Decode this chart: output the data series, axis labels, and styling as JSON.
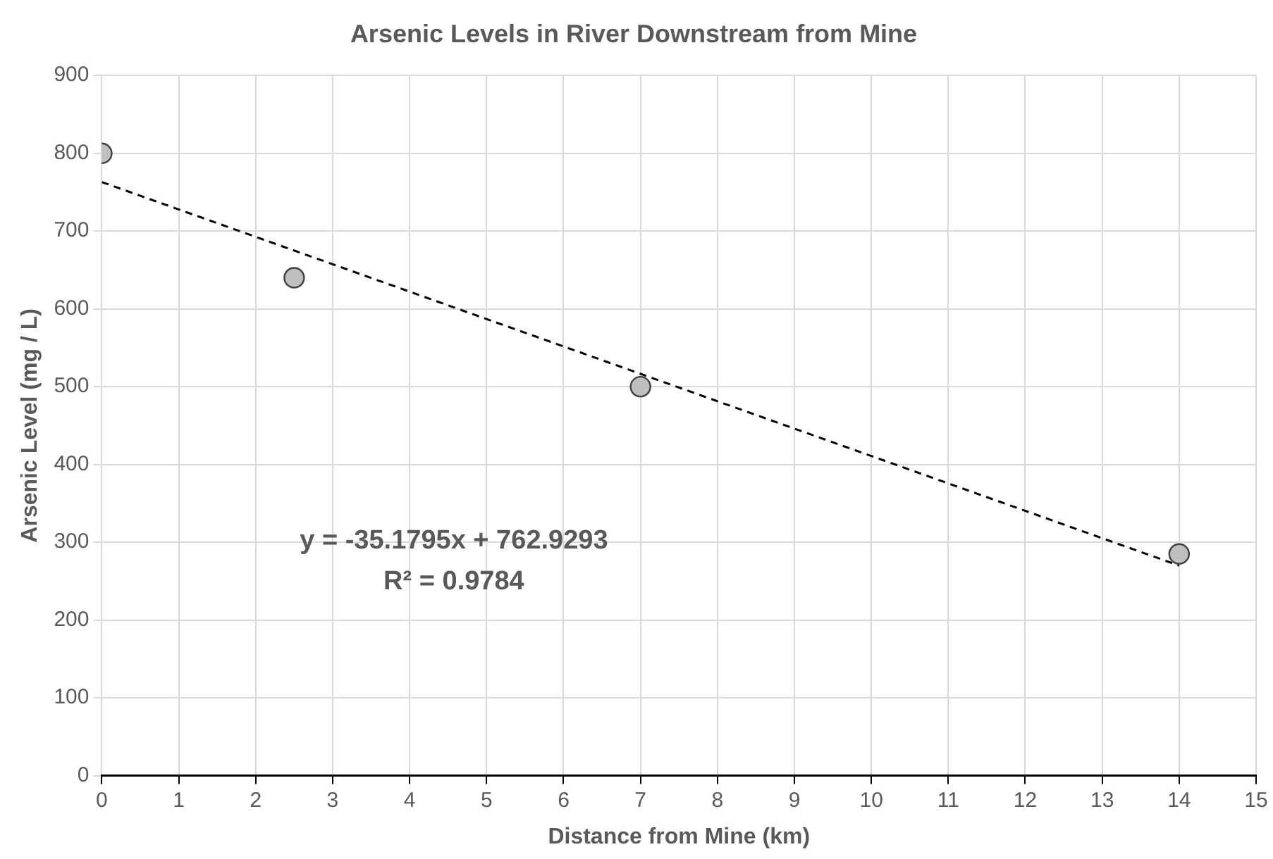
{
  "chart_data": {
    "type": "scatter",
    "title": "Arsenic Levels in River Downstream from Mine",
    "xlabel": "Distance from Mine (km)",
    "ylabel": "Arsenic Level (mg / L)",
    "x": [
      0,
      2.5,
      7,
      14
    ],
    "series": [
      {
        "type": "scatter",
        "color": "#bfbfbf",
        "values": [
          800,
          640,
          500,
          285
        ],
        "marker": "circle"
      },
      {
        "type": "line",
        "color": "#000000",
        "x": [
          0,
          14
        ],
        "values": [
          763,
          270
        ],
        "line_style": "dashed",
        "marker": "none"
      }
    ],
    "xlim": [
      0,
      15
    ],
    "xticks": [
      0,
      1,
      2,
      3,
      4,
      5,
      6,
      7,
      8,
      9,
      10,
      11,
      12,
      13,
      14,
      15
    ],
    "ylim": [
      0,
      900
    ],
    "yticks": [
      0,
      100,
      200,
      300,
      400,
      500,
      600,
      700,
      800,
      900
    ],
    "grid": true,
    "legend": false,
    "annotations": [
      "y = -35.1795x + 762.9293",
      "R² = 0.9784"
    ]
  }
}
